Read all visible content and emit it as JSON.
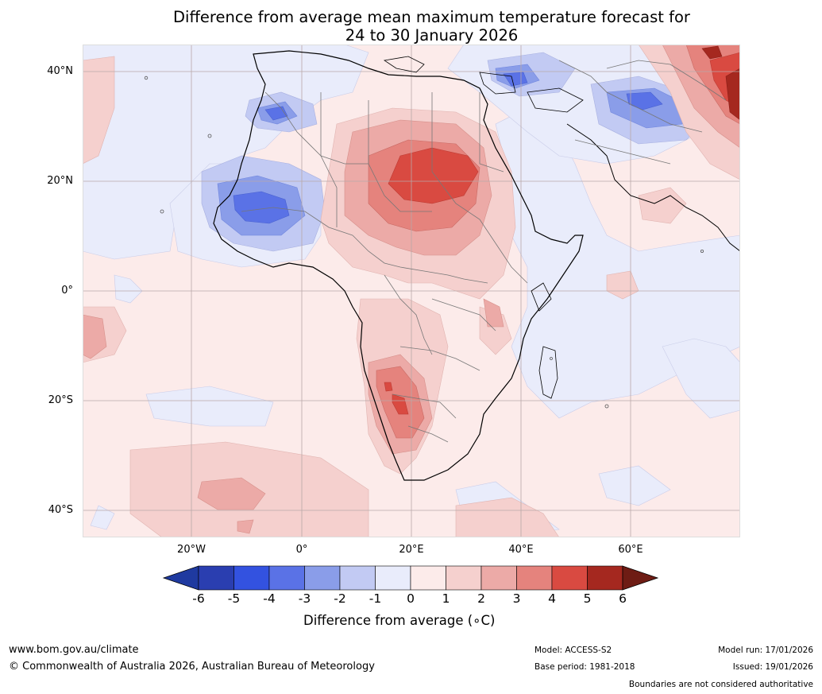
{
  "title": {
    "line1": "Difference from average mean maximum temperature forecast for",
    "line2": "24 to 30 January 2026"
  },
  "map": {
    "region": "Africa",
    "latitude_labels": [
      "40°N",
      "20°N",
      "0°",
      "20°S",
      "40°S"
    ],
    "longitude_labels": [
      "20°W",
      "0°",
      "20°E",
      "40°E",
      "60°E"
    ],
    "anomaly_regions": [
      {
        "name": "Sahara and Sudan warm anomaly",
        "value_range": "2 to 5"
      },
      {
        "name": "Namibia and Botswana warm anomaly",
        "value_range": "2 to 5"
      },
      {
        "name": "West Africa Sahel cool anomaly",
        "value_range": "-1 to -4"
      },
      {
        "name": "Southern Europe and Middle East cool anomaly",
        "value_range": "-1 to -4"
      },
      {
        "name": "Central Asia warm anomaly",
        "value_range": "3 to 6"
      }
    ]
  },
  "colorbar": {
    "ticks": [
      "-6",
      "-5",
      "-4",
      "-3",
      "-2",
      "-1",
      "0",
      "1",
      "2",
      "3",
      "4",
      "5",
      "6"
    ],
    "colors": [
      "#1f3aa0",
      "#2a3eb0",
      "#3352e0",
      "#5a72e6",
      "#8a9de9",
      "#c2caf3",
      "#e9ecfb",
      "#fcebea",
      "#f5d0ce",
      "#ecaaa7",
      "#e5837d",
      "#d94a41",
      "#a5281f",
      "#6e1c14"
    ],
    "label": "Difference from average (∘C)"
  },
  "footer": {
    "website": "www.bom.gov.au/climate",
    "copyright": "© Commonwealth of Australia 2026, Australian Bureau of Meteorology",
    "model": "Model: ACCESS-S2",
    "base_period": "Base period: 1981-2018",
    "model_run": "Model run: 17/01/2026",
    "issued": "Issued: 19/01/2026",
    "disclaimer": "Boundaries are not considered authoritative"
  }
}
